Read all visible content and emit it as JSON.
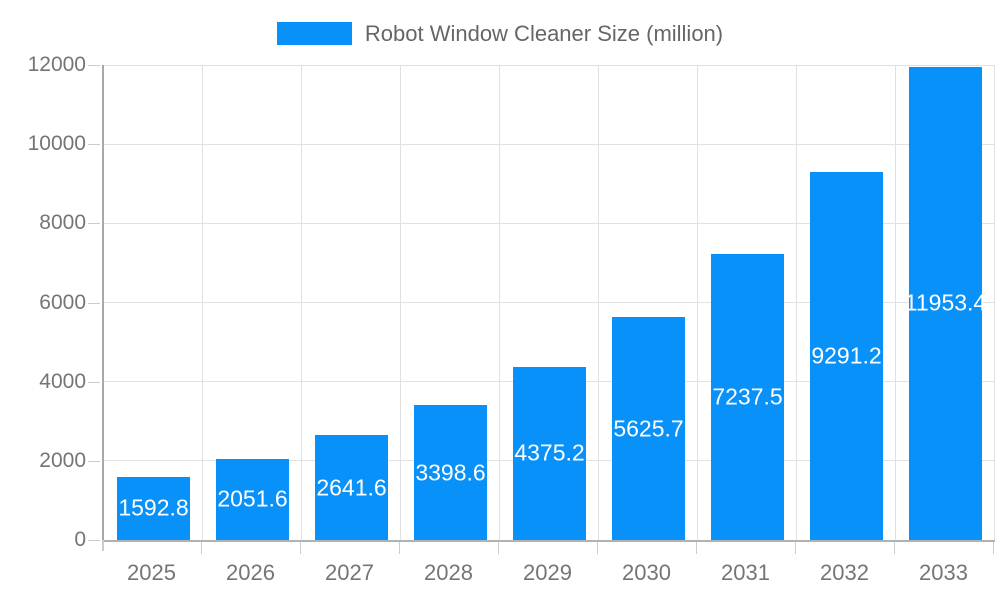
{
  "legend": {
    "label": "Robot Window Cleaner Size (million)"
  },
  "chart_data": {
    "type": "bar",
    "title": "Robot Window Cleaner Size (million)",
    "categories": [
      "2025",
      "2026",
      "2027",
      "2028",
      "2029",
      "2030",
      "2031",
      "2032",
      "2033"
    ],
    "values": [
      1592.8,
      2051.6,
      2641.6,
      3398.6,
      4375.2,
      5625.7,
      7237.5,
      9291.2,
      11953.4
    ],
    "value_labels": [
      "1592.8",
      "2051.6",
      "2641.6",
      "3398.6",
      "4375.2",
      "5625.7",
      "7237.5",
      "9291.2",
      "11953.4"
    ],
    "xlabel": "",
    "ylabel": "",
    "ylim": [
      0,
      12000
    ],
    "yticks": [
      0,
      2000,
      4000,
      6000,
      8000,
      10000,
      12000
    ],
    "grid": true,
    "legend_position": "top",
    "colors": {
      "bar": "#0991fa",
      "grid": "#e1e1e1",
      "axis": "#a9a9a9",
      "tick_mark": "#cccccc",
      "tick_text": "#757575",
      "value_text": "#ffffff",
      "legend_text": "#666666"
    }
  }
}
